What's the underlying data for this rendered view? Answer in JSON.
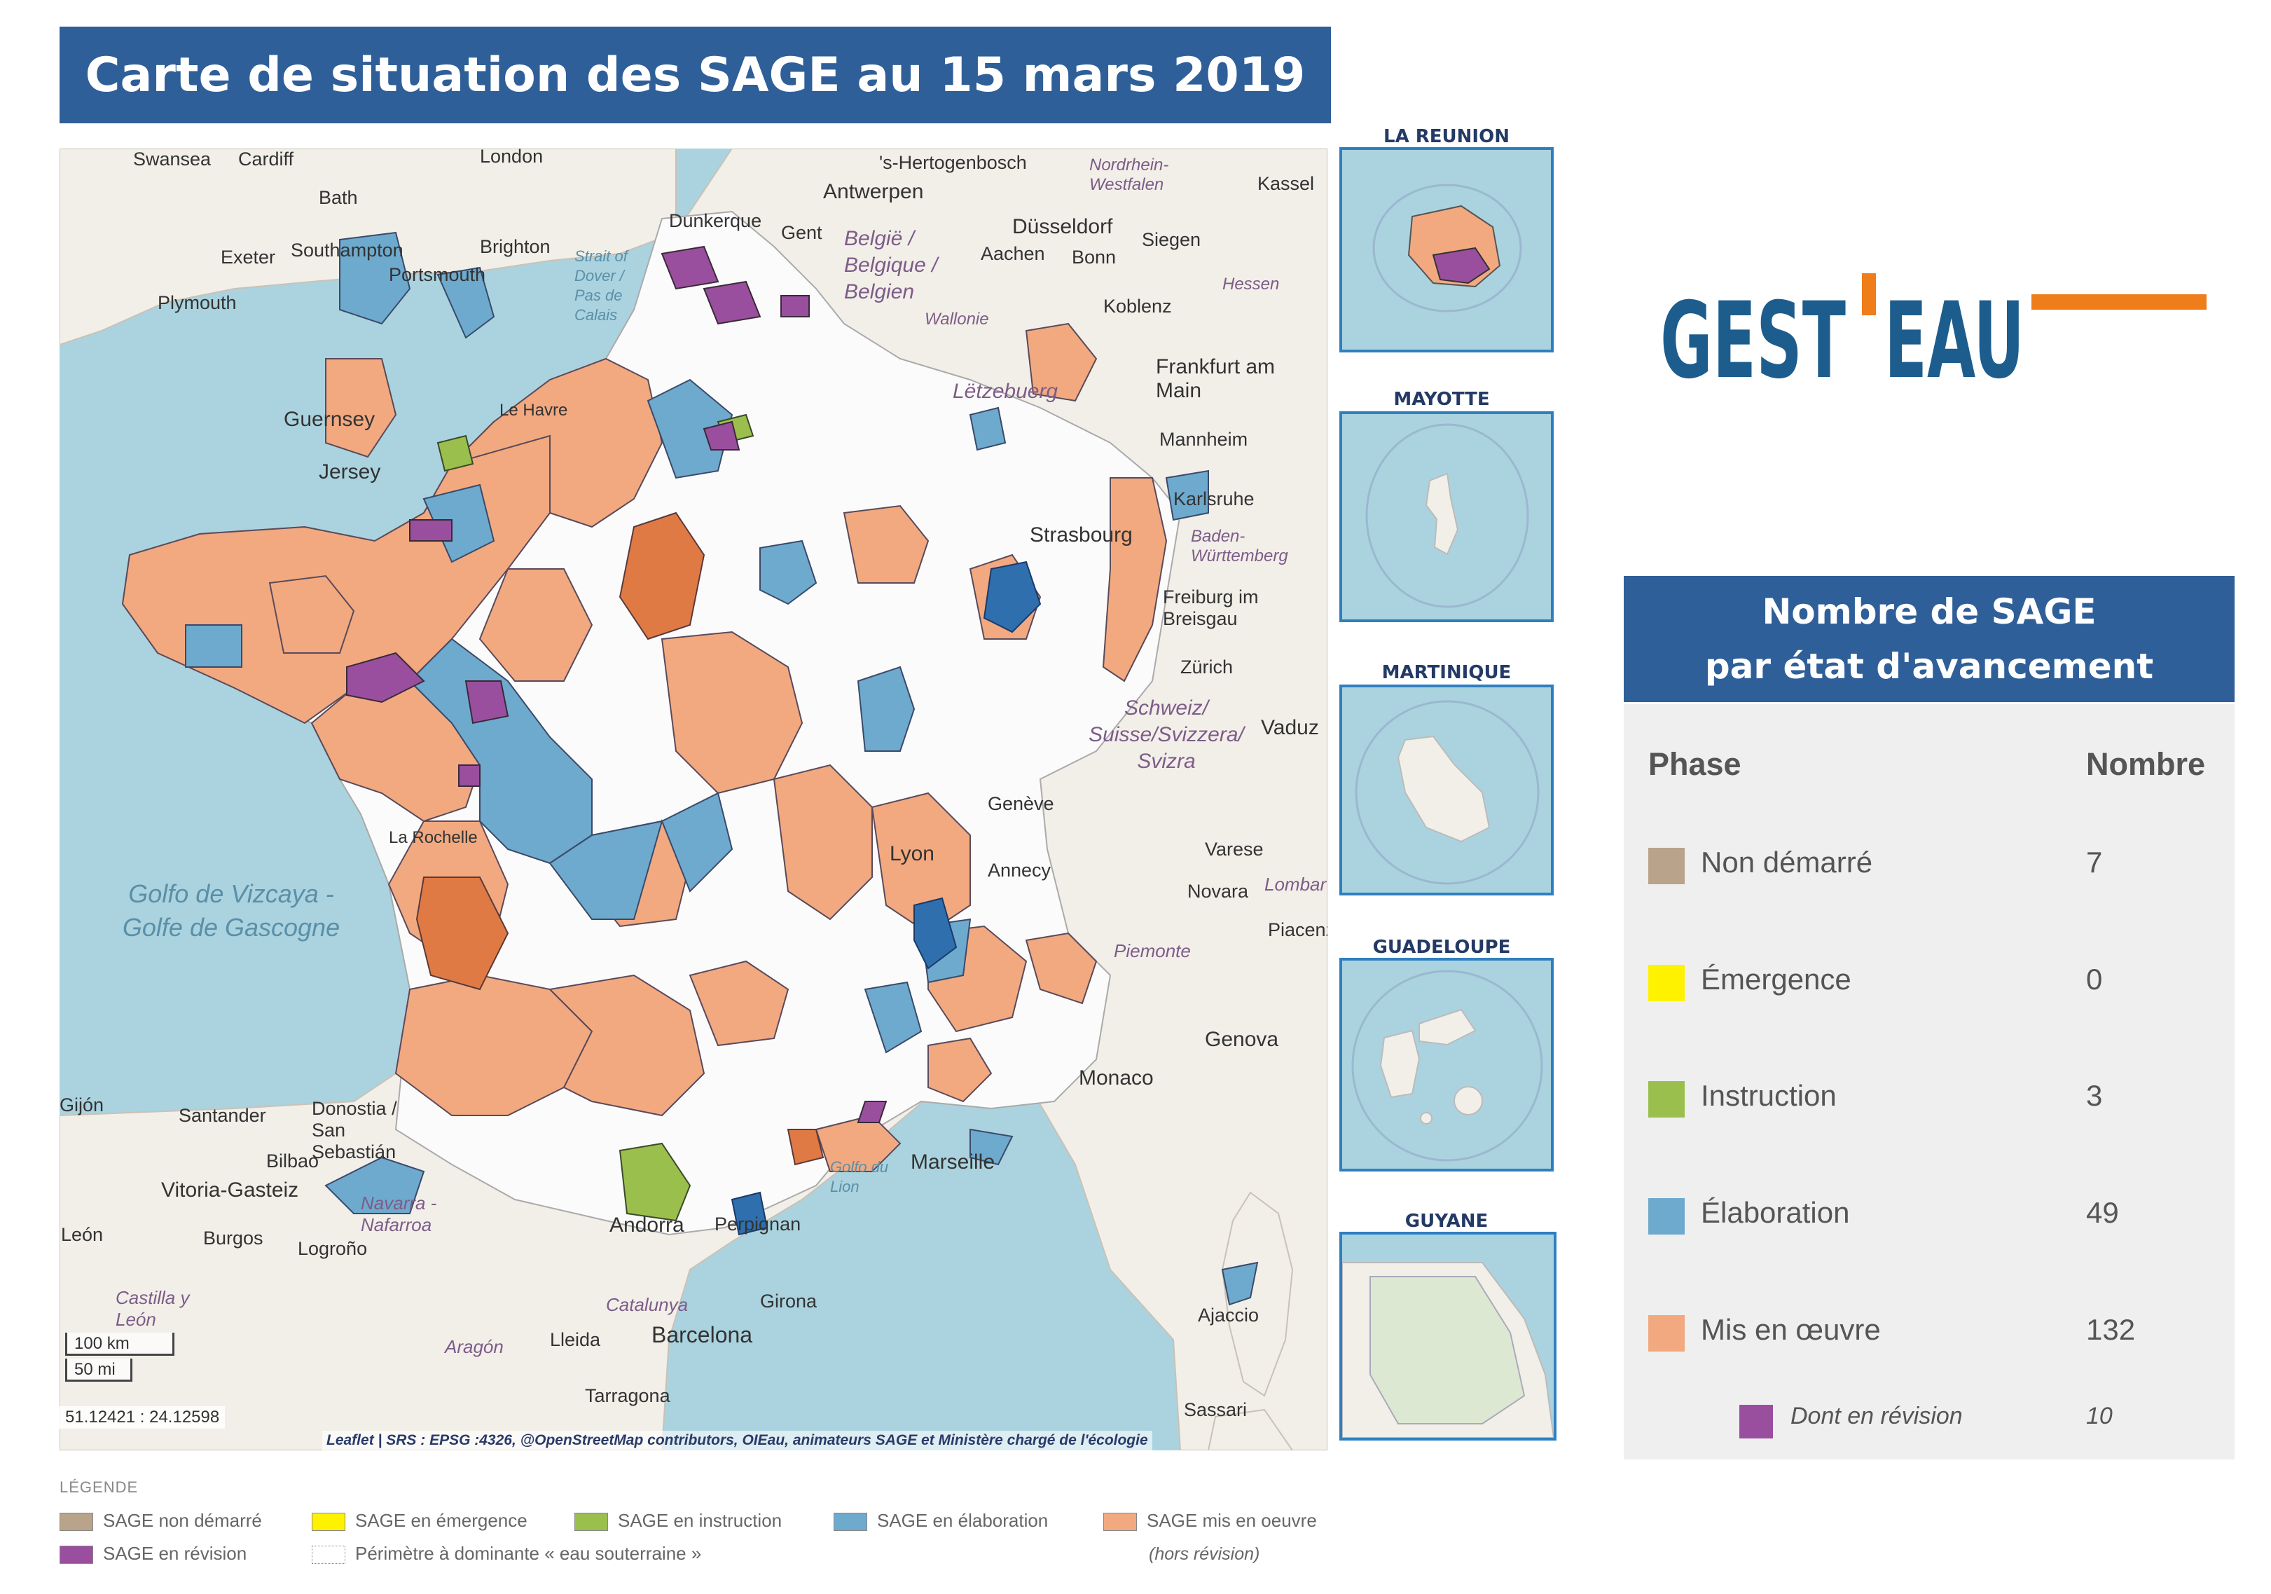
{
  "title": "Carte de situation des SAGE au 15 mars 2019",
  "colors": {
    "banner": "#2f5f99",
    "water": "#aad3df",
    "land": "#f2efe9",
    "non_demarre": "#b9a38a",
    "emergence": "#fff200",
    "instruction": "#9bbf4c",
    "elaboration": "#6eaacd",
    "mis_en_oeuvre": "#f2a980",
    "revision": "#9a4f9e",
    "logo_blue": "#1d5d8d",
    "logo_orange": "#ee7d1a"
  },
  "map": {
    "labels": {
      "swansea": "Swansea",
      "cardiff": "Cardiff",
      "london": "London",
      "bath": "Bath",
      "brighton": "Brighton",
      "southampton": "Southampton",
      "portsmouth": "Portsmouth",
      "exeter": "Exeter",
      "plymouth": "Plymouth",
      "guernsey": "Guernsey",
      "jersey": "Jersey",
      "dunkerque": "Dunkerque",
      "antwerpen": "Antwerpen",
      "gent": "Gent",
      "hertogenbosch": "'s-Hertogenbosch",
      "dusseldorf": "Düsseldorf",
      "aachen": "Aachen",
      "bonn": "Bonn",
      "siegen": "Siegen",
      "kassel": "Kassel",
      "koblenz": "Koblenz",
      "frankfurt": "Frankfurt am Main",
      "mannheim": "Mannheim",
      "karlsruhe": "Karlsruhe",
      "strasbourg": "Strasbourg",
      "freiburg": "Freiburg im Breisgau",
      "zurich": "Zürich",
      "vaduz": "Vaduz",
      "letzebuerg": "Lëtzebuerg",
      "belgique": "Belgiё / Belgique / Belgien",
      "nordrhein": "Nordrhein-Westfalen",
      "hessen": "Hessen",
      "wallonie": "Wallonie",
      "baden": "Baden-Württemberg",
      "schweiz": "Schweiz/ Suisse/Svizzera/ Svizra",
      "geneve": "Genève",
      "annecy": "Annecy",
      "lyon": "Lyon",
      "varese": "Varese",
      "novara": "Novara",
      "lombardia": "Lombar",
      "piacenza": "Piacenz",
      "piemonte": "Piemonte",
      "genova": "Genova",
      "monaco": "Monaco",
      "marseille": "Marseille",
      "golfe_lion": "Golfo du Lion",
      "perpignan": "Perpignan",
      "andorra": "Andorra",
      "girona": "Girona",
      "barcelona": "Barcelona",
      "catalunya": "Catalunya",
      "lleida": "Lleida",
      "tarragona": "Tarragona",
      "aragon": "Aragón",
      "navarra": "Navarra - Nafarroa",
      "logrono": "Logroño",
      "burgos": "Burgos",
      "leon": "León",
      "castilla": "Castilla y León",
      "vitoria": "Vitoria-Gasteiz",
      "bilbao": "Bilbao",
      "donostia": "Donostia / San Sebastián",
      "santander": "Santander",
      "gijon": "Gijón",
      "golfo": "Golfo de Vizcaya - Golfe de Gascogne",
      "strait": "Strait of Dover / Pas de Calais",
      "ajaccio": "Ajaccio",
      "sassari": "Sassari",
      "le_havre": "Le Havre",
      "la_rochelle": "La Rochelle"
    },
    "scale_km": "100 km",
    "scale_mi": "50 mi",
    "coordinates": "51.12421 : 24.12598",
    "attribution": "Leaflet | SRS : EPSG :4326, @OpenStreetMap contributors, OIEau, animateurs SAGE et Ministère chargé de l'écologie"
  },
  "insets": [
    {
      "title": "LA REUNION"
    },
    {
      "title": "MAYOTTE"
    },
    {
      "title": "MARTINIQUE"
    },
    {
      "title": "GUADELOUPE"
    },
    {
      "title": "GUYANE"
    }
  ],
  "logo": {
    "text_left": "GEST",
    "text_right": "EAU"
  },
  "stats": {
    "heading_line1": "Nombre de SAGE",
    "heading_line2": "par état d'avancement",
    "col_phase": "Phase",
    "col_nombre": "Nombre",
    "rows": [
      {
        "label": "Non démarré",
        "value": "7",
        "color": "#b9a38a"
      },
      {
        "label": "Émergence",
        "value": "0",
        "color": "#fff200"
      },
      {
        "label": "Instruction",
        "value": "3",
        "color": "#9bbf4c"
      },
      {
        "label": "Élaboration",
        "value": "49",
        "color": "#6eaacd"
      },
      {
        "label": "Mis en œuvre",
        "value": "132",
        "color": "#f2a980"
      }
    ],
    "sub_row": {
      "label": "Dont en révision",
      "value": "10",
      "color": "#9a4f9e"
    }
  },
  "legend": {
    "title": "LÉGENDE",
    "items": [
      {
        "label": "SAGE non démarré",
        "color": "#b9a38a"
      },
      {
        "label": "SAGE en émergence",
        "color": "#fff200"
      },
      {
        "label": "SAGE en instruction",
        "color": "#9bbf4c"
      },
      {
        "label": "SAGE en élaboration",
        "color": "#6eaacd"
      },
      {
        "label": "SAGE mis en oeuvre",
        "color": "#f2a980"
      },
      {
        "label": "SAGE en révision",
        "color": "#9a4f9e"
      },
      {
        "label": "Périmètre à dominante « eau souterraine »",
        "color": "#ffffff"
      }
    ],
    "note": "(hors révision)"
  }
}
